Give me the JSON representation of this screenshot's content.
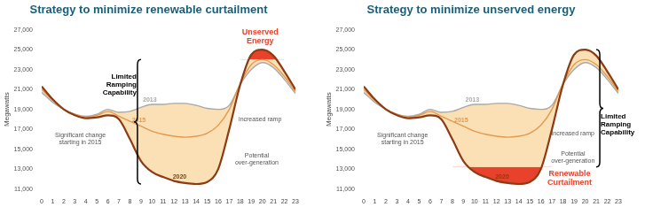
{
  "chart_data": [
    {
      "type": "line",
      "title": "Strategy to minimize renewable curtailment",
      "y_label": "Megawatts",
      "x": [
        0,
        1,
        2,
        3,
        4,
        5,
        6,
        7,
        8,
        9,
        10,
        11,
        12,
        13,
        14,
        15,
        16,
        17,
        18,
        19,
        20,
        21,
        22,
        23
      ],
      "xlim": [
        0,
        23
      ],
      "xticks": [
        0,
        1,
        2,
        3,
        4,
        5,
        6,
        7,
        8,
        9,
        10,
        11,
        12,
        13,
        14,
        15,
        16,
        17,
        18,
        19,
        20,
        21,
        22,
        23
      ],
      "ylim": [
        11000,
        27000
      ],
      "yticks": [
        {
          "value": 11000,
          "label": "11,000"
        },
        {
          "value": 13000,
          "label": "13,000"
        },
        {
          "value": 15000,
          "label": "15,000"
        },
        {
          "value": 17000,
          "label": "17,000"
        },
        {
          "value": 19000,
          "label": "19,000"
        },
        {
          "value": 21000,
          "label": "21,000"
        },
        {
          "value": 23000,
          "label": "23,000"
        },
        {
          "value": 25000,
          "label": "25,000"
        },
        {
          "value": 27000,
          "label": "27,000"
        }
      ],
      "grid": false,
      "series": [
        {
          "name": "2013",
          "color": "#a9a9a9",
          "values": [
            20700,
            19700,
            19000,
            18500,
            18300,
            18500,
            19000,
            18700,
            18800,
            19200,
            19500,
            19500,
            19600,
            19600,
            19400,
            19100,
            19000,
            19400,
            21500,
            23000,
            23700,
            23200,
            22000,
            20600
          ]
        },
        {
          "name": "2015",
          "color": "#e39a4f",
          "values": [
            21000,
            19900,
            19000,
            18500,
            18200,
            18400,
            18800,
            18300,
            17800,
            17300,
            16800,
            16500,
            16300,
            16200,
            16300,
            16600,
            17400,
            19000,
            21600,
            23500,
            24000,
            23500,
            22300,
            20800
          ]
        },
        {
          "name": "2020",
          "color": "#8c3b12",
          "values": [
            21300,
            20000,
            19000,
            18400,
            18100,
            18200,
            18400,
            18000,
            16000,
            13800,
            12700,
            12200,
            11800,
            11600,
            11500,
            11700,
            13000,
            17000,
            21500,
            24500,
            25000,
            24400,
            22800,
            21000
          ]
        }
      ],
      "region": {
        "label": "Unserved Energy",
        "color": "#e8412c",
        "hours": [
          18,
          22
        ],
        "threshold": 24000,
        "label_x": 19.8,
        "label_y": 26300
      },
      "bracket": {
        "text": "Limited Ramping Capability",
        "x": 9,
        "y_from": 11500,
        "y_to": 24000,
        "text_x": 8.6,
        "text_y": 21500
      },
      "annotations": [
        {
          "text": "Significant change starting in 2015",
          "x": 3.5,
          "y": 16000
        },
        {
          "text": "increased ramp",
          "x": 19.8,
          "y": 18000
        },
        {
          "text": "Potential over-generation",
          "x": 19.5,
          "y": 14000
        }
      ]
    },
    {
      "type": "line",
      "title": "Strategy to minimize unserved energy",
      "y_label": "Megawatts",
      "x": [
        0,
        1,
        2,
        3,
        4,
        5,
        6,
        7,
        8,
        9,
        10,
        11,
        12,
        13,
        14,
        15,
        16,
        17,
        18,
        19,
        20,
        21,
        22,
        23
      ],
      "xlim": [
        0,
        23
      ],
      "xticks": [
        0,
        1,
        2,
        3,
        4,
        5,
        6,
        7,
        8,
        9,
        10,
        11,
        12,
        13,
        14,
        15,
        16,
        17,
        18,
        19,
        20,
        21,
        22,
        23
      ],
      "ylim": [
        11000,
        27000
      ],
      "yticks": [
        {
          "value": 11000,
          "label": "11,000"
        },
        {
          "value": 13000,
          "label": "13,000"
        },
        {
          "value": 15000,
          "label": "15,000"
        },
        {
          "value": 17000,
          "label": "17,000"
        },
        {
          "value": 19000,
          "label": "19,000"
        },
        {
          "value": 21000,
          "label": "21,000"
        },
        {
          "value": 23000,
          "label": "23,000"
        },
        {
          "value": 25000,
          "label": "25,000"
        },
        {
          "value": 27000,
          "label": "27,000"
        }
      ],
      "grid": false,
      "series": [
        {
          "name": "2013",
          "color": "#a9a9a9",
          "values": [
            20700,
            19700,
            19000,
            18500,
            18300,
            18500,
            19000,
            18700,
            18800,
            19200,
            19500,
            19500,
            19600,
            19600,
            19400,
            19100,
            19000,
            19400,
            21500,
            23000,
            23700,
            23200,
            22000,
            20600
          ]
        },
        {
          "name": "2015",
          "color": "#e39a4f",
          "values": [
            21000,
            19900,
            19000,
            18500,
            18200,
            18400,
            18800,
            18300,
            17800,
            17300,
            16800,
            16500,
            16300,
            16200,
            16300,
            16600,
            17400,
            19000,
            21600,
            23500,
            24000,
            23500,
            22300,
            20800
          ]
        },
        {
          "name": "2020",
          "color": "#8c3b12",
          "values": [
            21300,
            20000,
            19000,
            18400,
            18100,
            18200,
            18400,
            18000,
            16000,
            13800,
            12700,
            12200,
            11800,
            11600,
            11500,
            11700,
            13000,
            17000,
            21500,
            24500,
            25000,
            24400,
            22800,
            21000
          ]
        }
      ],
      "region": {
        "label": "Renewable Curtailment",
        "color": "#e8412c",
        "hours": [
          8,
          17
        ],
        "threshold": 13200,
        "label_x": 18.6,
        "label_y": 12100
      },
      "bracket": {
        "text": "Limited Ramping Capability",
        "x": 21,
        "y_from": 13200,
        "y_to": 25000,
        "text_x": 21.4,
        "text_y": 17500
      },
      "annotations": [
        {
          "text": "Significant change starting in 2015",
          "x": 3.5,
          "y": 16000
        },
        {
          "text": "increased ramp",
          "x": 18.9,
          "y": 16600
        },
        {
          "text": "Potential over-generation",
          "x": 18.9,
          "y": 14200
        }
      ]
    }
  ]
}
